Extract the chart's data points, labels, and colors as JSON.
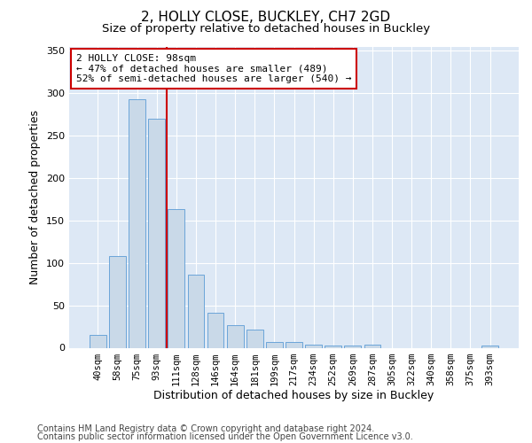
{
  "title": "2, HOLLY CLOSE, BUCKLEY, CH7 2GD",
  "subtitle": "Size of property relative to detached houses in Buckley",
  "xlabel": "Distribution of detached houses by size in Buckley",
  "ylabel": "Number of detached properties",
  "categories": [
    "40sqm",
    "58sqm",
    "75sqm",
    "93sqm",
    "111sqm",
    "128sqm",
    "146sqm",
    "164sqm",
    "181sqm",
    "199sqm",
    "217sqm",
    "234sqm",
    "252sqm",
    "269sqm",
    "287sqm",
    "305sqm",
    "322sqm",
    "340sqm",
    "358sqm",
    "375sqm",
    "393sqm"
  ],
  "values": [
    15,
    108,
    293,
    270,
    163,
    86,
    41,
    27,
    21,
    7,
    7,
    4,
    3,
    3,
    4,
    0,
    0,
    0,
    0,
    0,
    3
  ],
  "bar_color": "#c9d9e8",
  "bar_edge_color": "#5b9bd5",
  "vline_x": 3.5,
  "vline_color": "#cc0000",
  "annotation_text": "2 HOLLY CLOSE: 98sqm\n← 47% of detached houses are smaller (489)\n52% of semi-detached houses are larger (540) →",
  "annotation_box_color": "#ffffff",
  "annotation_box_edge": "#cc0000",
  "ylim": [
    0,
    355
  ],
  "yticks": [
    0,
    50,
    100,
    150,
    200,
    250,
    300,
    350
  ],
  "plot_bg_color": "#dde8f5",
  "fig_bg_color": "#ffffff",
  "footer_line1": "Contains HM Land Registry data © Crown copyright and database right 2024.",
  "footer_line2": "Contains public sector information licensed under the Open Government Licence v3.0.",
  "title_fontsize": 11,
  "subtitle_fontsize": 9.5,
  "xlabel_fontsize": 9,
  "ylabel_fontsize": 9,
  "footer_fontsize": 7,
  "tick_fontsize": 7.5,
  "annot_fontsize": 8
}
